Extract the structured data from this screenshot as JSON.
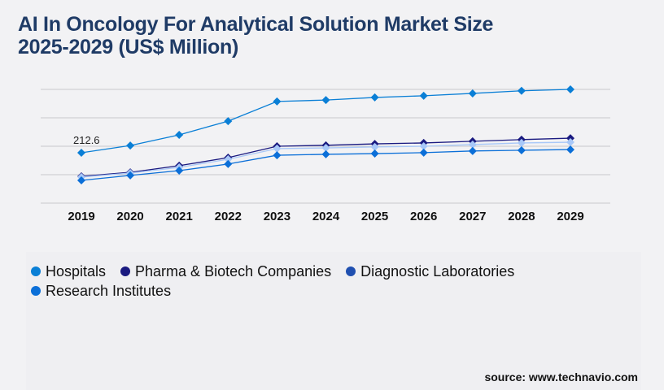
{
  "title_line1": "AI In Oncology For Analytical Solution Market Size",
  "title_line2": "2025-2029 (US$ Million)",
  "source": "source: www.technavio.com",
  "chart_data": {
    "type": "line",
    "title": "AI In Oncology For Analytical Solution Market Size 2025-2029 (US$ Million)",
    "categories": [
      "2019",
      "2020",
      "2021",
      "2022",
      "2023",
      "2024",
      "2025",
      "2026",
      "2027",
      "2028",
      "2029"
    ],
    "ylim": [
      0,
      480
    ],
    "grid": true,
    "legend": "bottom",
    "annotations": [
      {
        "series": "Hospitals",
        "x": "2019",
        "label": "212.6"
      }
    ],
    "series": [
      {
        "name": "Hospitals",
        "color": "#0a7fd6",
        "line_color": "#0a7fd6",
        "values": [
          212.6,
          243,
          288,
          346,
          429,
          435,
          446,
          453,
          463,
          474,
          480
        ]
      },
      {
        "name": "Pharma & Biotech Companies",
        "color": "#1a1a80",
        "line_color": "#1a1a80",
        "values": [
          113,
          130,
          158,
          192,
          240,
          244,
          250,
          254,
          261,
          268,
          274
        ]
      },
      {
        "name": "Diagnostic Laboratories",
        "color": "#1f4fb0",
        "line_color": "#a8c8f8",
        "values": [
          110,
          127,
          151,
          185,
          230,
          233,
          237,
          240,
          247,
          254,
          257
        ]
      },
      {
        "name": "Research Institutes",
        "color": "#0b6fd8",
        "line_color": "#0b6fd8",
        "values": [
          96,
          117,
          137,
          165,
          202,
          206,
          209,
          213,
          220,
          223,
          226
        ]
      }
    ]
  }
}
